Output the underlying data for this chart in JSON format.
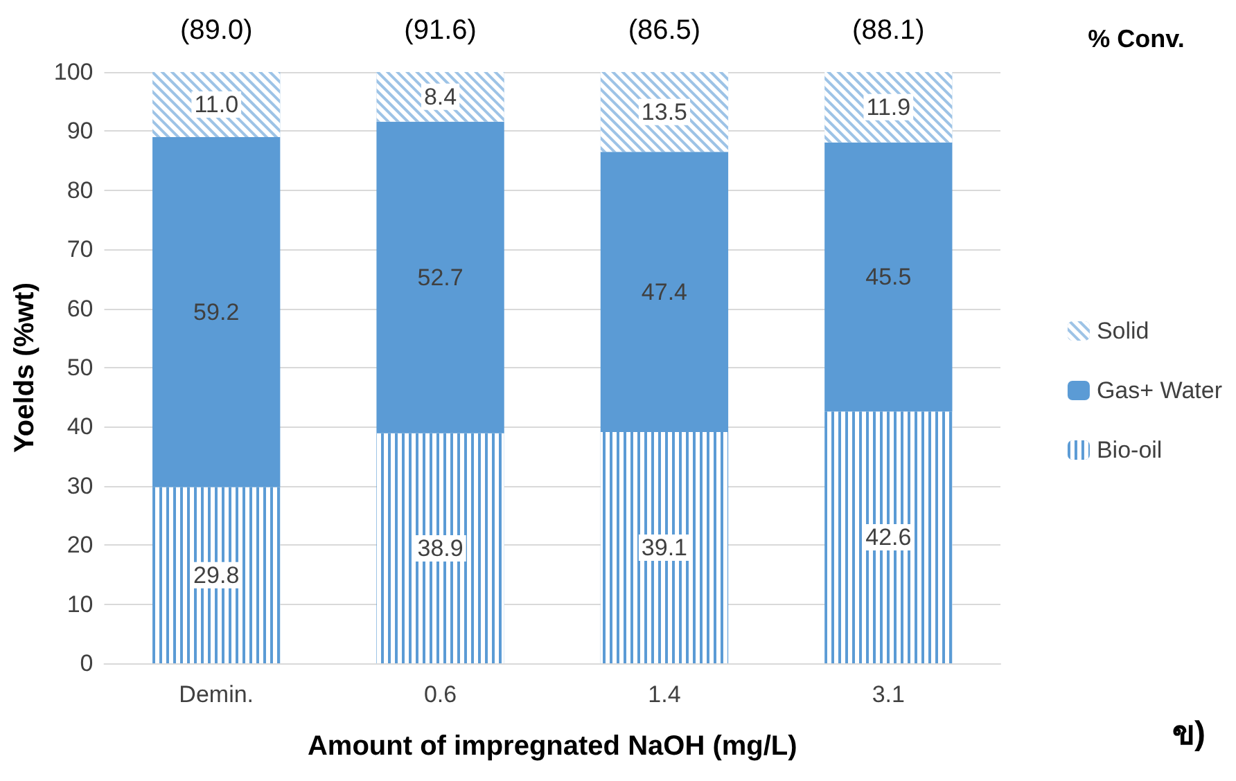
{
  "chart_data": {
    "type": "bar",
    "stacked": true,
    "xlabel": "Amount of impregnated NaOH (mg/L)",
    "ylabel": "Yoelds (%wt)",
    "categories": [
      "Demin.",
      "0.6",
      "1.4",
      "3.1"
    ],
    "series": [
      {
        "name": "Bio-oil",
        "color": "#5b9bd5",
        "values": [
          29.8,
          38.9,
          39.1,
          42.6
        ],
        "value_labels": [
          "29.8",
          "38.9",
          "39.1",
          "42.6"
        ]
      },
      {
        "name": "Gas+ Water",
        "color": "#5b9bd5",
        "values": [
          59.2,
          52.7,
          47.4,
          45.5
        ],
        "value_labels": [
          "59.2",
          "52.7",
          "47.4",
          "45.5"
        ]
      },
      {
        "name": "Solid",
        "color": "#9dc3e6",
        "values": [
          11.0,
          8.4,
          13.5,
          11.9
        ],
        "value_labels": [
          "11.0",
          "8.4",
          "13.5",
          "11.9"
        ]
      }
    ],
    "ylim": [
      0,
      100
    ],
    "yticks": [
      0,
      10,
      20,
      30,
      40,
      50,
      60,
      70,
      80,
      90,
      100
    ],
    "grid": "y",
    "legend": "right",
    "annotations": [
      "(89.0)",
      "(91.6)",
      "(86.5)",
      "(88.1)",
      "% Conv.",
      "ข)"
    ]
  }
}
